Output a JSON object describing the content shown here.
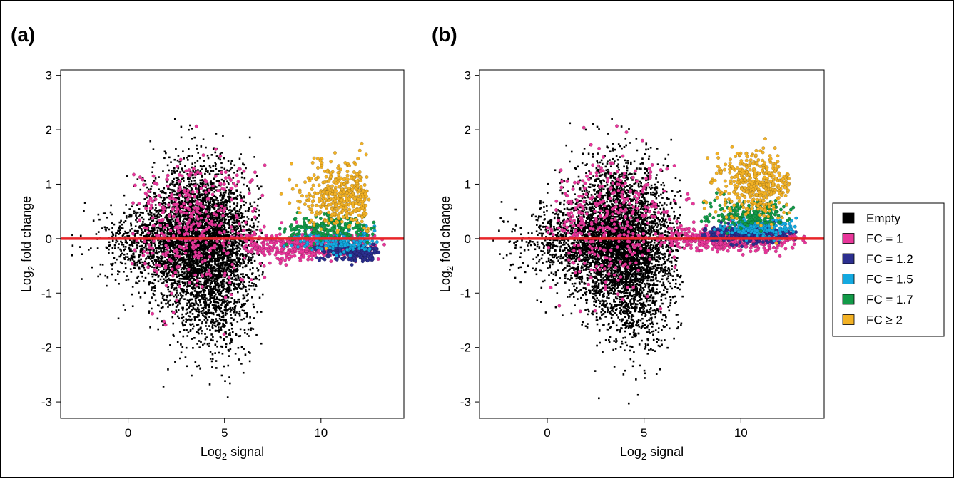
{
  "figure": {
    "legend": [
      {
        "label": "Empty",
        "color": "#000000"
      },
      {
        "label": "FC = 1",
        "color": "#e8369a"
      },
      {
        "label": "FC = 1.2",
        "color": "#2c2f8f"
      },
      {
        "label": "FC = 1.5",
        "color": "#13a9e0"
      },
      {
        "label": "FC = 1.7",
        "color": "#129a48"
      },
      {
        "label": "FC ≥ 2",
        "color": "#f2b124"
      }
    ],
    "reference_line_color": "#e8262a"
  },
  "chart_data": [
    {
      "type": "scatter",
      "panel_label": "(a)",
      "xlabel": "Log2 signal",
      "ylabel": "Log2 fold change",
      "xlim": [
        -3.5,
        14.3
      ],
      "ylim": [
        -3.3,
        3.1
      ],
      "xticks": [
        0,
        5,
        10
      ],
      "yticks": [
        3,
        2,
        1,
        0,
        -1,
        -2,
        -3
      ],
      "reference_line_y": 0,
      "grid": false,
      "series": [
        {
          "name": "Empty",
          "color": "#000000",
          "clusters": [
            {
              "cx": 4.0,
              "cy": -0.2,
              "sx": 1.4,
              "sy": 0.6,
              "n": 3000,
              "xmin": -3,
              "xmax": 7
            },
            {
              "cx": 3.5,
              "cy": 0.4,
              "sx": 1.2,
              "sy": 0.6,
              "n": 1000,
              "xmin": -3,
              "xmax": 7
            },
            {
              "cx": 1.5,
              "cy": -0.05,
              "sx": 1.5,
              "sy": 0.35,
              "n": 800,
              "xmin": -3,
              "xmax": 7
            },
            {
              "cx": 4.5,
              "cy": -1.2,
              "sx": 1.0,
              "sy": 0.6,
              "n": 500,
              "xmin": -3,
              "xmax": 7
            }
          ]
        },
        {
          "name": "FC = 1",
          "color": "#e8369a",
          "clusters": [
            {
              "cx": 3.2,
              "cy": 0.3,
              "sx": 1.8,
              "sy": 0.6,
              "n": 400,
              "xmin": 0,
              "xmax": 8
            },
            {
              "cx": 9.5,
              "cy": -0.15,
              "sx": 1.8,
              "sy": 0.12,
              "n": 500,
              "xmin": 6,
              "xmax": 13.5
            }
          ]
        },
        {
          "name": "FC = 1.2",
          "color": "#2c2f8f",
          "clusters": [
            {
              "cx": 11.7,
              "cy": -0.25,
              "sx": 0.9,
              "sy": 0.08,
              "n": 250,
              "xmin": 9.5,
              "xmax": 13
            }
          ]
        },
        {
          "name": "FC = 1.5",
          "color": "#13a9e0",
          "clusters": [
            {
              "cx": 11.0,
              "cy": -0.05,
              "sx": 1.1,
              "sy": 0.1,
              "n": 200,
              "xmin": 8,
              "xmax": 13
            }
          ]
        },
        {
          "name": "FC = 1.7",
          "color": "#129a48",
          "clusters": [
            {
              "cx": 10.5,
              "cy": 0.2,
              "sx": 1.2,
              "sy": 0.12,
              "n": 200,
              "xmin": 7.5,
              "xmax": 12.8
            }
          ]
        },
        {
          "name": "FC ≥ 2",
          "color": "#f2b124",
          "clusters": [
            {
              "cx": 11.2,
              "cy": 0.8,
              "sx": 1.0,
              "sy": 0.3,
              "n": 450,
              "xmin": 7.5,
              "xmax": 12.5
            }
          ]
        }
      ]
    },
    {
      "type": "scatter",
      "panel_label": "(b)",
      "xlabel": "Log2 signal",
      "ylabel": "Log2 fold change",
      "xlim": [
        -3.5,
        14.3
      ],
      "ylim": [
        -3.3,
        3.1
      ],
      "xticks": [
        0,
        5,
        10
      ],
      "yticks": [
        3,
        2,
        1,
        0,
        -1,
        -2,
        -3
      ],
      "reference_line_y": 0,
      "grid": false,
      "series": [
        {
          "name": "Empty",
          "color": "#000000",
          "clusters": [
            {
              "cx": 4.0,
              "cy": -0.2,
              "sx": 1.4,
              "sy": 0.6,
              "n": 3000,
              "xmin": -3,
              "xmax": 7
            },
            {
              "cx": 3.5,
              "cy": 0.4,
              "sx": 1.2,
              "sy": 0.6,
              "n": 1000,
              "xmin": -3,
              "xmax": 7
            },
            {
              "cx": 1.5,
              "cy": -0.05,
              "sx": 1.5,
              "sy": 0.35,
              "n": 800,
              "xmin": -3,
              "xmax": 7
            },
            {
              "cx": 4.5,
              "cy": -1.2,
              "sx": 1.0,
              "sy": 0.6,
              "n": 500,
              "xmin": -3,
              "xmax": 7
            }
          ]
        },
        {
          "name": "FC = 1",
          "color": "#e8369a",
          "clusters": [
            {
              "cx": 3.2,
              "cy": 0.3,
              "sx": 1.8,
              "sy": 0.6,
              "n": 400,
              "xmin": 0,
              "xmax": 8
            },
            {
              "cx": 9.5,
              "cy": -0.02,
              "sx": 1.9,
              "sy": 0.1,
              "n": 550,
              "xmin": 6,
              "xmax": 13.5
            }
          ]
        },
        {
          "name": "FC = 1.2",
          "color": "#2c2f8f",
          "clusters": [
            {
              "cx": 10.5,
              "cy": 0.08,
              "sx": 1.3,
              "sy": 0.08,
              "n": 250,
              "xmin": 8,
              "xmax": 13
            }
          ]
        },
        {
          "name": "FC = 1.5",
          "color": "#13a9e0",
          "clusters": [
            {
              "cx": 11.0,
              "cy": 0.2,
              "sx": 1.0,
              "sy": 0.08,
              "n": 200,
              "xmin": 8.5,
              "xmax": 13
            }
          ]
        },
        {
          "name": "FC = 1.7",
          "color": "#129a48",
          "clusters": [
            {
              "cx": 10.3,
              "cy": 0.45,
              "sx": 1.2,
              "sy": 0.12,
              "n": 200,
              "xmin": 7.5,
              "xmax": 12.8
            }
          ]
        },
        {
          "name": "FC ≥ 2",
          "color": "#f2b124",
          "clusters": [
            {
              "cx": 10.8,
              "cy": 1.0,
              "sx": 1.0,
              "sy": 0.3,
              "n": 450,
              "xmin": 7.5,
              "xmax": 12.5
            }
          ]
        }
      ]
    }
  ]
}
